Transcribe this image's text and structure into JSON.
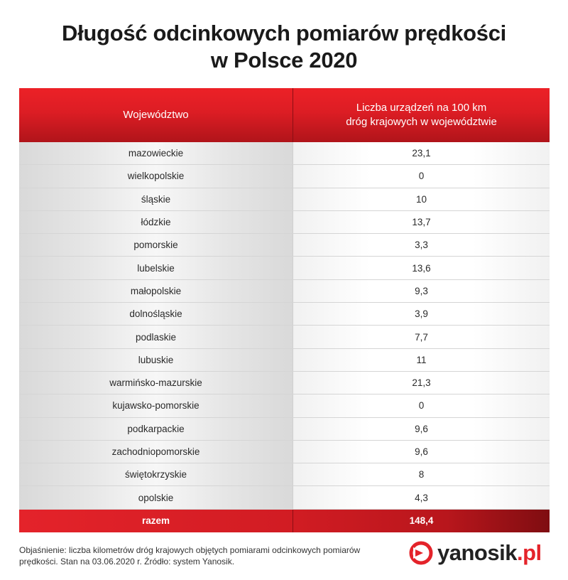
{
  "title": {
    "line1": "Długość odcinkowych pomiarów prędkości",
    "line2": "w Polsce 2020"
  },
  "table": {
    "header": {
      "col1": "Województwo",
      "col2_line1": "Liczba urządzeń na 100 km",
      "col2_line2": "dróg krajowych w województwie"
    },
    "rows": [
      {
        "region": "mazowieckie",
        "value": "23,1"
      },
      {
        "region": "wielkopolskie",
        "value": "0"
      },
      {
        "region": "śląskie",
        "value": "10"
      },
      {
        "region": "łódzkie",
        "value": "13,7"
      },
      {
        "region": "pomorskie",
        "value": "3,3"
      },
      {
        "region": "lubelskie",
        "value": "13,6"
      },
      {
        "region": "małopolskie",
        "value": "9,3"
      },
      {
        "region": "dolnośląskie",
        "value": "3,9"
      },
      {
        "region": "podlaskie",
        "value": "7,7"
      },
      {
        "region": "lubuskie",
        "value": "11"
      },
      {
        "region": "warmińsko-mazurskie",
        "value": "21,3"
      },
      {
        "region": "kujawsko-pomorskie",
        "value": "0"
      },
      {
        "region": "podkarpackie",
        "value": "9,6"
      },
      {
        "region": "zachodniopomorskie",
        "value": "9,6"
      },
      {
        "region": "świętokrzyskie",
        "value": "8"
      },
      {
        "region": "opolskie",
        "value": "4,3"
      }
    ],
    "total": {
      "label": "razem",
      "value": "148,4"
    }
  },
  "note": "Objaśnienie: liczba kilometrów dróg krajowych objętych pomiarami odcinkowych pomiarów prędkości. Stan na 03.06.2020 r. Źródło: system Yanosik.",
  "logo": {
    "name": "yanosik",
    "tld": ".pl",
    "icon": "yanosik-logo-icon"
  },
  "colors": {
    "accent_red": "#e4232a",
    "dark_red": "#b0141a",
    "row_gray": "#e6e6e6"
  },
  "chart_data": {
    "type": "table",
    "title": "Długość odcinkowych pomiarów prędkości w Polsce 2020",
    "columns": [
      "Województwo",
      "Liczba urządzeń na 100 km dróg krajowych w województwie"
    ],
    "categories": [
      "mazowieckie",
      "wielkopolskie",
      "śląskie",
      "łódzkie",
      "pomorskie",
      "lubelskie",
      "małopolskie",
      "dolnośląskie",
      "podlaskie",
      "lubuskie",
      "warmińsko-mazurskie",
      "kujawsko-pomorskie",
      "podkarpackie",
      "zachodniopomorskie",
      "świętokrzyskie",
      "opolskie"
    ],
    "values": [
      23.1,
      0,
      10,
      13.7,
      3.3,
      13.6,
      9.3,
      3.9,
      7.7,
      11,
      21.3,
      0,
      9.6,
      9.6,
      8,
      4.3
    ],
    "total": 148.4
  }
}
